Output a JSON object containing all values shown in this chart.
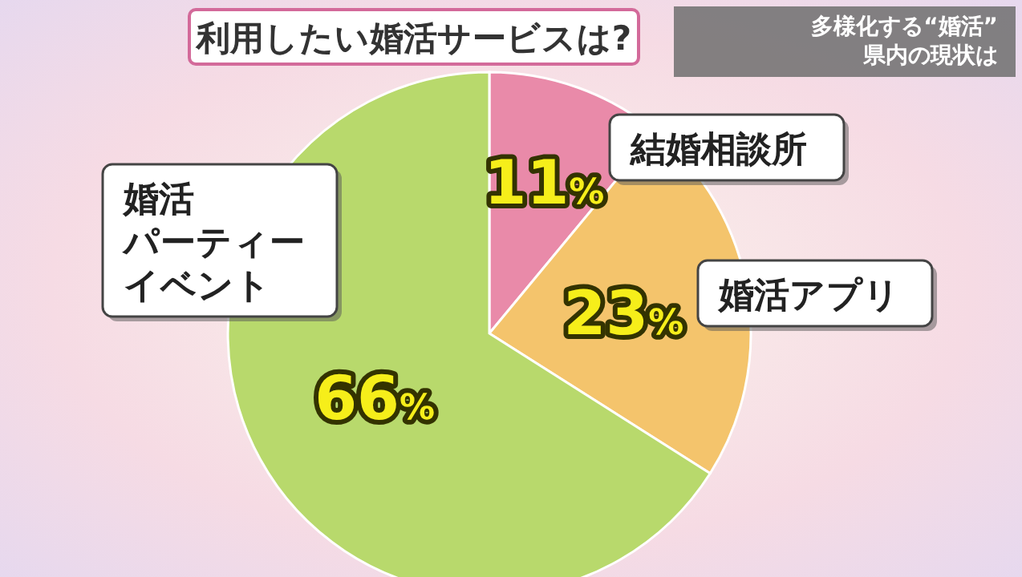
{
  "chart_data": {
    "type": "pie",
    "title": "利用したい婚活サービスは?",
    "subtitle": "多様化する“婚活”\n県内の現状は",
    "categories": [
      "結婚相談所",
      "婚活アプリ",
      "婚活パーティーイベント"
    ],
    "values": [
      11,
      23,
      66
    ],
    "colors": [
      "#e98aa9",
      "#f4c46c",
      "#b8d96c"
    ],
    "value_labels": [
      "11%",
      "23%",
      "66%"
    ]
  }
}
